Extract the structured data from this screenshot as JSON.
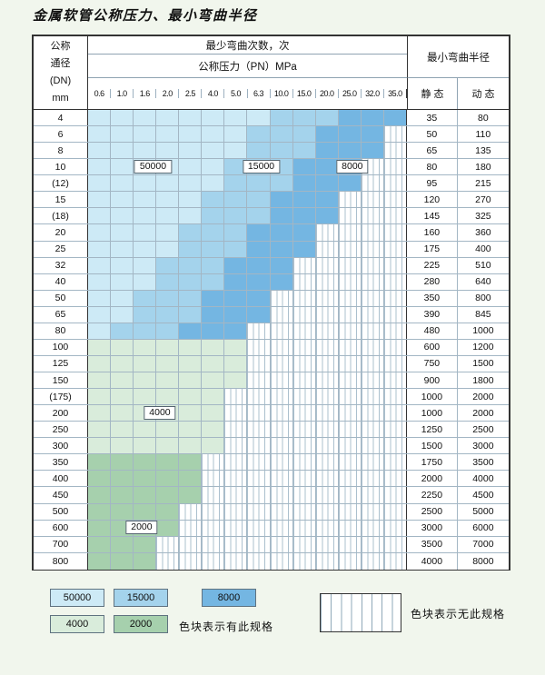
{
  "title": "金属软管公称压力、最小弯曲半径",
  "table": {
    "header": {
      "dn_lines": [
        "公称",
        "通径",
        "(DN)",
        "mm"
      ],
      "cycles_title": "最少弯曲次数，次",
      "pressure_title": "公称压力（PN）MPa",
      "pressures": [
        "0.6",
        "1.0",
        "1.6",
        "2.0",
        "2.5",
        "4.0",
        "5.0",
        "6.3",
        "10.0",
        "15.0",
        "20.0",
        "25.0",
        "32.0",
        "35.0"
      ],
      "radius_title": "最小弯曲半径",
      "static_label": "静 态",
      "dynamic_label": "动 态"
    },
    "zone_values": {
      "a": "50000",
      "b": "15000",
      "c": "8000",
      "d": "4000",
      "e": "2000"
    },
    "zone_colors": {
      "a": "#cdeaf6",
      "b": "#a4d3ec",
      "c": "#74b6e2",
      "d": "#d9ecdb",
      "e": "#a6d0ad"
    },
    "rows": [
      {
        "dn": "4",
        "cells": "aaaaaaaabbbccc",
        "static": "35",
        "dynamic": "80"
      },
      {
        "dn": "6",
        "cells": "aaaaaaabbbcccx",
        "static": "50",
        "dynamic": "110"
      },
      {
        "dn": "8",
        "cells": "aaaaaaabbbcccx",
        "static": "65",
        "dynamic": "135"
      },
      {
        "dn": "10",
        "cells": "aaaaaabbbcccxx",
        "static": "80",
        "dynamic": "180"
      },
      {
        "dn": "(12)",
        "cells": "aaaaaabbbcccxx",
        "static": "95",
        "dynamic": "215"
      },
      {
        "dn": "15",
        "cells": "aaaaabbbcccxxx",
        "static": "120",
        "dynamic": "270"
      },
      {
        "dn": "(18)",
        "cells": "aaaaabbbcccxxx",
        "static": "145",
        "dynamic": "325"
      },
      {
        "dn": "20",
        "cells": "aaaabbbcccxxxx",
        "static": "160",
        "dynamic": "360"
      },
      {
        "dn": "25",
        "cells": "aaaabbbcccxxxx",
        "static": "175",
        "dynamic": "400"
      },
      {
        "dn": "32",
        "cells": "aaabbbcccxxxxx",
        "static": "225",
        "dynamic": "510"
      },
      {
        "dn": "40",
        "cells": "aaabbbcccxxxxx",
        "static": "280",
        "dynamic": "640"
      },
      {
        "dn": "50",
        "cells": "aabbbcccxxxxxx",
        "static": "350",
        "dynamic": "800"
      },
      {
        "dn": "65",
        "cells": "aabbbcccxxxxxx",
        "static": "390",
        "dynamic": "845"
      },
      {
        "dn": "80",
        "cells": "abbbcccxxxxxxx",
        "static": "480",
        "dynamic": "1000"
      },
      {
        "dn": "100",
        "cells": "dddddddxxxxxxx",
        "static": "600",
        "dynamic": "1200"
      },
      {
        "dn": "125",
        "cells": "dddddddxxxxxxx",
        "static": "750",
        "dynamic": "1500"
      },
      {
        "dn": "150",
        "cells": "dddddddxxxxxxx",
        "static": "900",
        "dynamic": "1800"
      },
      {
        "dn": "(175)",
        "cells": "ddddddxxxxxxxx",
        "static": "1000",
        "dynamic": "2000"
      },
      {
        "dn": "200",
        "cells": "ddddddxxxxxxxx",
        "static": "1000",
        "dynamic": "2000"
      },
      {
        "dn": "250",
        "cells": "ddddddxxxxxxxx",
        "static": "1250",
        "dynamic": "2500"
      },
      {
        "dn": "300",
        "cells": "ddddddxxxxxxxx",
        "static": "1500",
        "dynamic": "3000"
      },
      {
        "dn": "350",
        "cells": "eeeeexxxxxxxxx",
        "static": "1750",
        "dynamic": "3500"
      },
      {
        "dn": "400",
        "cells": "eeeeexxxxxxxxx",
        "static": "2000",
        "dynamic": "4000"
      },
      {
        "dn": "450",
        "cells": "eeeeexxxxxxxxx",
        "static": "2250",
        "dynamic": "4500"
      },
      {
        "dn": "500",
        "cells": "eeeexxxxxxxxxx",
        "static": "2500",
        "dynamic": "5000"
      },
      {
        "dn": "600",
        "cells": "eeeexxxxxxxxxx",
        "static": "3000",
        "dynamic": "6000"
      },
      {
        "dn": "700",
        "cells": "eeexxxxxxxxxxx",
        "static": "3500",
        "dynamic": "7000"
      },
      {
        "dn": "800",
        "cells": "eeexxxxxxxxxxx",
        "static": "4000",
        "dynamic": "8000"
      }
    ],
    "overlays": [
      {
        "text": "50000",
        "row": 3,
        "col": 2.85
      },
      {
        "text": "15000",
        "row": 3,
        "col": 7.6
      },
      {
        "text": "8000",
        "row": 3,
        "col": 11.6
      },
      {
        "text": "4000",
        "row": 18,
        "col": 3.15
      },
      {
        "text": "2000",
        "row": 25,
        "col": 2.35
      }
    ]
  },
  "legend": {
    "swatch_rows": [
      [
        {
          "value": "50000",
          "zone": "a"
        },
        {
          "value": "15000",
          "zone": "b"
        },
        {
          "value": "8000",
          "zone": "c"
        }
      ],
      [
        {
          "value": "4000",
          "zone": "d"
        },
        {
          "value": "2000",
          "zone": "e"
        }
      ]
    ],
    "has_spec_text": "色块表示有此规格",
    "no_spec_text": "色块表示无此规格"
  }
}
